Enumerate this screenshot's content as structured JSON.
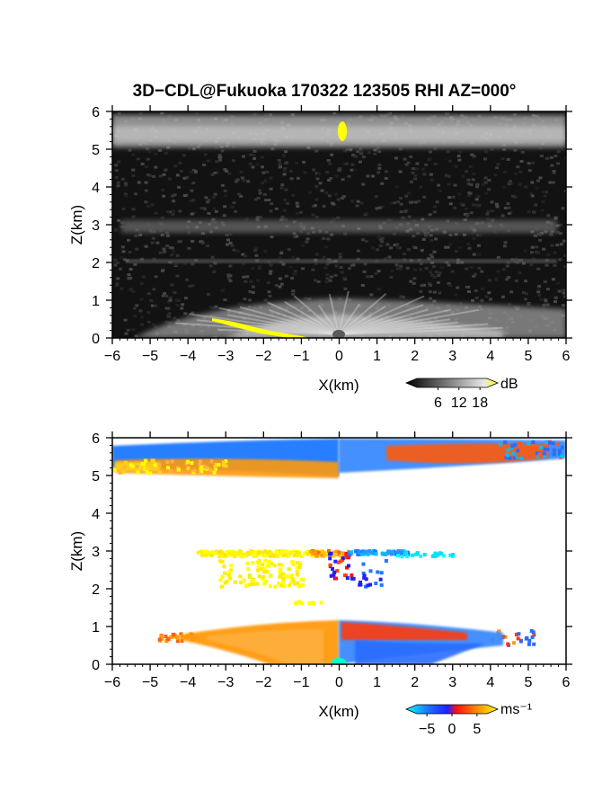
{
  "title": "3D−CDL@Fukuoka 170322 123505 RHI AZ=000°",
  "chart_data": [
    {
      "type": "heatmap",
      "panel": "reflectivity",
      "xlabel": "X(km)",
      "ylabel": "Z(km)",
      "xlim": [
        -6,
        6
      ],
      "ylim": [
        0,
        6
      ],
      "xticks": [
        "−6",
        "−5",
        "−4",
        "−3",
        "−2",
        "−1",
        "0",
        "1",
        "2",
        "3",
        "4",
        "5",
        "6"
      ],
      "yticks": [
        "0",
        "1",
        "2",
        "3",
        "4",
        "5",
        "6"
      ],
      "colorbar": {
        "unit": "dB",
        "ticks": [
          "6",
          "12",
          "18"
        ],
        "range": [
          0,
          20
        ],
        "colormap": "grayscale-to-yellow"
      },
      "features": [
        {
          "name": "upper layer",
          "z_range": [
            5.0,
            5.9
          ],
          "level_db": 12
        },
        {
          "name": "yellow echo",
          "x": 0.1,
          "z_range": [
            5.15,
            5.6
          ],
          "level_db": 19
        },
        {
          "name": "mid layer",
          "z_range": [
            2.6,
            3.1
          ],
          "level_db": 8
        },
        {
          "name": "thin layer",
          "z_range": [
            1.95,
            2.15
          ],
          "level_db": 6
        },
        {
          "name": "boundary layer",
          "z_range": [
            0,
            1.1
          ],
          "level_db": 11
        },
        {
          "name": "ground echo",
          "x_range": [
            -3.3,
            -0.8
          ],
          "level_db": 19
        }
      ]
    },
    {
      "type": "heatmap",
      "panel": "doppler velocity",
      "xlabel": "X(km)",
      "ylabel": "Z(km)",
      "xlim": [
        -6,
        6
      ],
      "ylim": [
        0,
        6
      ],
      "xticks": [
        "−6",
        "−5",
        "−4",
        "−3",
        "−2",
        "−1",
        "0",
        "1",
        "2",
        "3",
        "4",
        "5",
        "6"
      ],
      "yticks": [
        "0",
        "1",
        "2",
        "3",
        "4",
        "5",
        "6"
      ],
      "colorbar": {
        "unit": "ms⁻¹",
        "ticks": [
          "−5",
          "0",
          "5"
        ],
        "range": [
          -7,
          7
        ],
        "colormap": "cyan-blue-red-yellow"
      },
      "features": [
        {
          "name": "upper layer west",
          "x_range": [
            -6,
            0
          ],
          "z_range": [
            5.0,
            5.9
          ],
          "velocity": "-4 to 5"
        },
        {
          "name": "upper layer east",
          "x_range": [
            0,
            6
          ],
          "z_range": [
            5.2,
            6.0
          ],
          "velocity": "-4 to 4"
        },
        {
          "name": "mid layer",
          "x_range": [
            -4.5,
            3.0
          ],
          "z_range": [
            1.6,
            3.1
          ],
          "velocity": "5 to -5"
        },
        {
          "name": "boundary layer",
          "x_range": [
            -4.8,
            5.2
          ],
          "z_range": [
            0,
            1.05
          ],
          "velocity": "-4 to 4"
        }
      ]
    }
  ]
}
